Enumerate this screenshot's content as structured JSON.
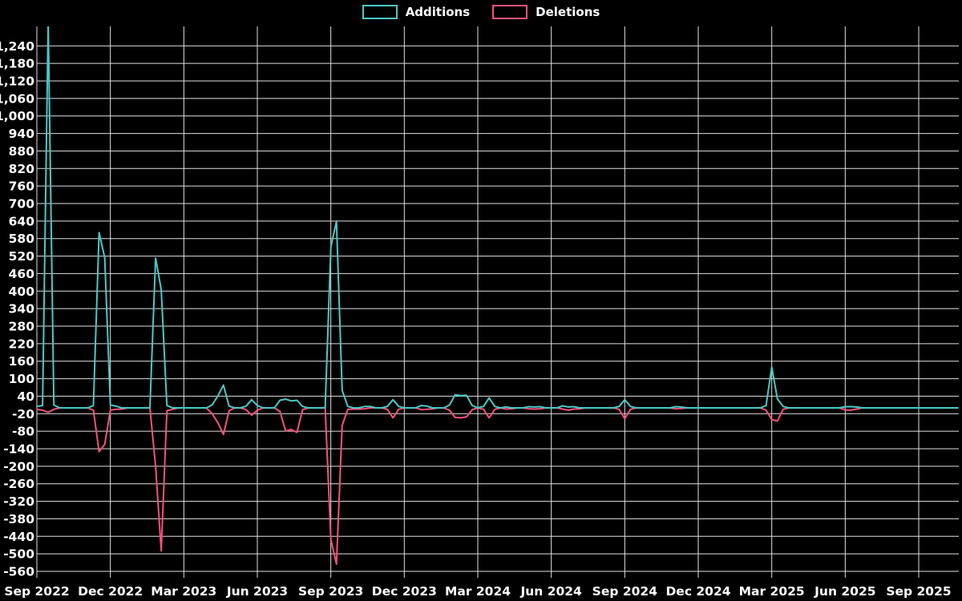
{
  "chart_data": {
    "type": "line",
    "title": "",
    "background_color": "#000000",
    "grid": true,
    "grid_color": "#e0e0e0",
    "text_color": "#ffffff",
    "legend_position": "top-center",
    "x_axis": {
      "unit": "week",
      "tick_labels": [
        "Sep 2022",
        "Dec 2022",
        "Mar 2023",
        "Jun 2023",
        "Sep 2023",
        "Dec 2023",
        "Mar 2024",
        "Jun 2024",
        "Sep 2024",
        "Dec 2024",
        "Mar 2025",
        "Jun 2025",
        "Sep 2025"
      ]
    },
    "y_axis": {
      "tick_step": 60,
      "ticks": [
        -560,
        -500,
        -440,
        -380,
        -320,
        -260,
        -200,
        -140,
        -80,
        -20,
        40,
        100,
        160,
        220,
        280,
        340,
        400,
        460,
        520,
        580,
        640,
        700,
        760,
        820,
        880,
        940,
        1000,
        1060,
        1120,
        1180,
        1240
      ]
    },
    "series": [
      {
        "name": "Additions",
        "color": "#4cc8c8",
        "values": [
          5,
          8,
          1320,
          10,
          0,
          0,
          0,
          0,
          0,
          0,
          8,
          600,
          515,
          10,
          6,
          0,
          0,
          0,
          0,
          0,
          0,
          513,
          405,
          8,
          0,
          0,
          0,
          0,
          0,
          0,
          0,
          10,
          40,
          78,
          6,
          0,
          0,
          6,
          28,
          8,
          0,
          0,
          0,
          26,
          30,
          24,
          26,
          5,
          0,
          0,
          0,
          0,
          550,
          640,
          60,
          5,
          0,
          0,
          5,
          5,
          0,
          0,
          5,
          28,
          5,
          0,
          0,
          0,
          8,
          6,
          0,
          0,
          0,
          10,
          45,
          42,
          43,
          8,
          0,
          5,
          34,
          5,
          0,
          3,
          0,
          0,
          0,
          4,
          3,
          4,
          0,
          0,
          0,
          7,
          3,
          4,
          0,
          0,
          0,
          0,
          0,
          0,
          0,
          5,
          28,
          5,
          0,
          0,
          0,
          0,
          0,
          0,
          0,
          4,
          3,
          0,
          0,
          0,
          0,
          0,
          0,
          0,
          0,
          0,
          0,
          0,
          0,
          0,
          0,
          8,
          140,
          31,
          5,
          0,
          0,
          0,
          0,
          0,
          0,
          0,
          0,
          0,
          0,
          4,
          4,
          3,
          0,
          0,
          0,
          0,
          0,
          0,
          0,
          0,
          0,
          0,
          0,
          0,
          0,
          0,
          0,
          0,
          0,
          0
        ]
      },
      {
        "name": "Deletions",
        "color": "#f5527a",
        "values": [
          -5,
          -8,
          -15,
          -5,
          0,
          0,
          0,
          0,
          0,
          0,
          -8,
          -150,
          -125,
          -8,
          -5,
          -4,
          0,
          0,
          0,
          0,
          0,
          -200,
          -490,
          -10,
          -5,
          0,
          0,
          0,
          0,
          0,
          0,
          -20,
          -50,
          -91,
          -10,
          0,
          0,
          -6,
          -25,
          -8,
          0,
          0,
          0,
          -12,
          -79,
          -74,
          -84,
          -6,
          0,
          0,
          0,
          0,
          -450,
          -535,
          -60,
          -5,
          -4,
          -4,
          -3,
          0,
          0,
          0,
          -5,
          -34,
          -5,
          0,
          0,
          0,
          -6,
          -5,
          -3,
          0,
          0,
          -8,
          -33,
          -34,
          -31,
          -6,
          0,
          -5,
          -34,
          -5,
          0,
          -4,
          -3,
          0,
          0,
          -3,
          -4,
          -3,
          0,
          0,
          0,
          -4,
          -8,
          -4,
          -3,
          0,
          0,
          0,
          0,
          0,
          0,
          -5,
          -37,
          -5,
          0,
          0,
          0,
          0,
          0,
          0,
          0,
          -3,
          -2,
          0,
          0,
          0,
          0,
          0,
          0,
          0,
          0,
          0,
          0,
          0,
          0,
          0,
          0,
          -8,
          -40,
          -45,
          -5,
          0,
          0,
          0,
          0,
          0,
          0,
          0,
          0,
          0,
          0,
          -7,
          -8,
          -4,
          0,
          0,
          0,
          0,
          0,
          0,
          0,
          0,
          0,
          0,
          0,
          0,
          0,
          0,
          0,
          0,
          0,
          0
        ]
      }
    ]
  }
}
